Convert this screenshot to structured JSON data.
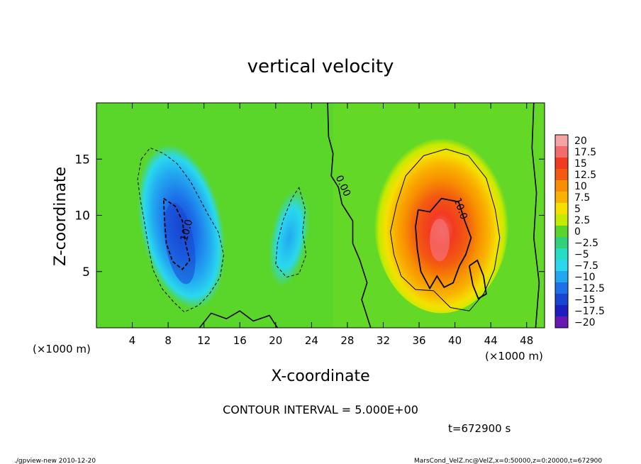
{
  "chart_data": {
    "type": "heatmap",
    "title": "vertical velocity",
    "xlabel": "X-coordinate",
    "ylabel": "Z-coordinate",
    "x_unit_left": "(×1000 m)",
    "x_unit_right": "(×1000 m)",
    "xlim": [
      0,
      50
    ],
    "ylim": [
      0,
      20
    ],
    "x_ticks": [
      4,
      8,
      12,
      16,
      20,
      24,
      28,
      32,
      36,
      40,
      44,
      48
    ],
    "y_ticks": [
      5,
      10,
      15
    ],
    "colorbar": {
      "levels": [
        20,
        17.5,
        15,
        12.5,
        10,
        7.5,
        5,
        2.5,
        0,
        -2.5,
        -5,
        -7.5,
        -10,
        -12.5,
        -15,
        -17.5,
        -20
      ],
      "labels": [
        "20",
        "17.5",
        "15",
        "12.5",
        "10",
        "7.5",
        "5",
        "2.5",
        "0",
        "−2.5",
        "−5",
        "−7.5",
        "−10",
        "−12.5",
        "−15",
        "−17.5",
        "−20"
      ],
      "colors": [
        "#f5a3a3",
        "#f46b6b",
        "#f23a20",
        "#f35a10",
        "#f78f00",
        "#f9b200",
        "#f5e000",
        "#c6ea00",
        "#5ad62a",
        "#2fd27a",
        "#26dcc4",
        "#2ad8ee",
        "#22a8f0",
        "#1c70ea",
        "#1846d2",
        "#1e1ec0",
        "#6a18b4"
      ]
    },
    "features": [
      {
        "kind": "min",
        "x": 9,
        "z": 8,
        "value": -14,
        "label": "10.0"
      },
      {
        "kind": "min",
        "x": 21.5,
        "z": 8,
        "value": -7
      },
      {
        "kind": "max",
        "x": 38.5,
        "z": 8,
        "value": 17,
        "label": "10.0"
      }
    ],
    "zero_contour_label": "0.00",
    "contour_interval_text": "CONTOUR INTERVAL = 5.000E+00",
    "time_text": "t=672900 s"
  },
  "footer": {
    "left": "./gpview-new  2010-12-20",
    "right": "MarsCond_VelZ.nc@VelZ,x=0:50000,z=0:20000,t=672900"
  }
}
